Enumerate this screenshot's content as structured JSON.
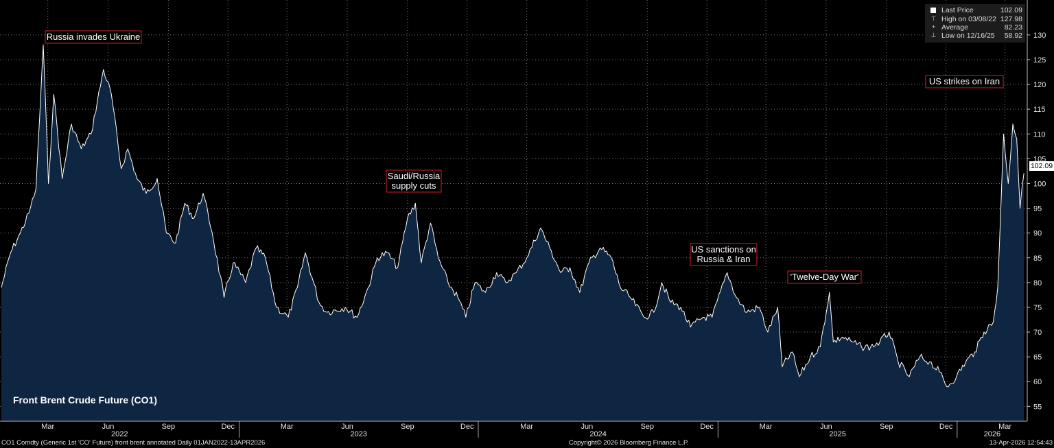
{
  "chart_data": {
    "type": "area",
    "title": "Front Brent Crude Future (CO1)",
    "ylim": [
      52,
      134
    ],
    "y_ticks": [
      55,
      60,
      65,
      70,
      75,
      80,
      85,
      90,
      95,
      100,
      105,
      110,
      115,
      120,
      125,
      130
    ],
    "x_month_ticks": [
      "Mar",
      "Jun",
      "Sep",
      "Dec",
      "Mar",
      "Jun",
      "Sep",
      "Dec",
      "Mar",
      "Jun",
      "Sep",
      "Dec",
      "Mar",
      "Jun",
      "Sep",
      "Dec",
      "Mar"
    ],
    "x_year_labels": [
      "2022",
      "2023",
      "2024",
      "2025",
      "2026"
    ],
    "grid": true,
    "series": [
      {
        "name": "Last Price",
        "x": [
          "2022-01-03",
          "2022-01-17",
          "2022-02-01",
          "2022-02-14",
          "2022-02-25",
          "2022-03-08",
          "2022-03-16",
          "2022-03-24",
          "2022-04-06",
          "2022-04-20",
          "2022-05-05",
          "2022-05-20",
          "2022-06-08",
          "2022-06-20",
          "2022-07-05",
          "2022-07-15",
          "2022-07-29",
          "2022-08-12",
          "2022-08-29",
          "2022-09-12",
          "2022-09-26",
          "2022-10-10",
          "2022-10-24",
          "2022-11-07",
          "2022-11-21",
          "2022-12-09",
          "2022-12-23",
          "2023-01-11",
          "2023-01-27",
          "2023-02-10",
          "2023-02-27",
          "2023-03-17",
          "2023-03-31",
          "2023-04-12",
          "2023-05-03",
          "2023-05-15",
          "2023-06-12",
          "2023-06-30",
          "2023-07-17",
          "2023-07-31",
          "2023-08-15",
          "2023-08-31",
          "2023-09-15",
          "2023-09-27",
          "2023-10-06",
          "2023-10-20",
          "2023-11-01",
          "2023-11-16",
          "2023-12-01",
          "2023-12-13",
          "2023-12-27",
          "2024-01-12",
          "2024-01-29",
          "2024-02-12",
          "2024-02-28",
          "2024-03-15",
          "2024-04-05",
          "2024-04-19",
          "2024-05-06",
          "2024-05-20",
          "2024-06-04",
          "2024-06-18",
          "2024-07-05",
          "2024-07-22",
          "2024-08-05",
          "2024-08-20",
          "2024-09-10",
          "2024-09-25",
          "2024-10-07",
          "2024-10-21",
          "2024-11-05",
          "2024-11-20",
          "2024-12-09",
          "2024-12-23",
          "2025-01-15",
          "2025-01-29",
          "2025-02-14",
          "2025-03-05",
          "2025-03-18",
          "2025-04-02",
          "2025-04-09",
          "2025-04-24",
          "2025-05-05",
          "2025-05-22",
          "2025-06-06",
          "2025-06-20",
          "2025-06-26",
          "2025-07-10",
          "2025-07-25",
          "2025-08-08",
          "2025-08-22",
          "2025-09-05",
          "2025-09-19",
          "2025-10-03",
          "2025-10-20",
          "2025-11-05",
          "2025-11-20",
          "2025-12-05",
          "2025-12-16",
          "2025-12-31",
          "2026-01-14",
          "2026-01-28",
          "2026-02-11",
          "2026-02-25",
          "2026-03-04",
          "2026-03-09",
          "2026-03-13",
          "2026-03-20",
          "2026-03-27",
          "2026-04-02",
          "2026-04-07",
          "2026-04-13"
        ],
        "y": [
          79,
          86,
          90,
          94,
          99,
          128,
          100,
          118,
          101,
          112,
          107,
          110,
          123,
          118,
          103,
          107,
          101,
          98,
          101,
          90,
          88,
          96,
          93,
          98,
          90,
          77,
          84,
          80,
          87,
          85,
          75,
          73,
          79,
          86,
          76,
          74,
          75,
          73,
          79,
          85,
          86,
          83,
          93,
          96,
          84,
          92,
          85,
          80,
          77,
          73,
          80,
          78,
          82,
          80,
          82,
          85,
          91,
          87,
          82,
          83,
          78,
          84,
          87,
          85,
          79,
          77,
          73,
          74,
          80,
          76,
          75,
          71,
          73,
          73,
          82,
          77,
          74,
          75,
          70,
          75,
          63,
          66,
          61,
          65,
          67,
          78,
          68,
          69,
          68,
          67,
          67,
          68,
          70,
          64,
          61,
          65,
          64,
          62,
          59,
          61,
          64,
          66,
          70,
          72,
          79,
          96,
          110,
          100,
          112,
          109,
          95,
          102.09
        ]
      }
    ],
    "legend": {
      "last_label": "Last Price",
      "last_value": "102.09",
      "high_label": "High on 03/08/22",
      "high_value": "127.98",
      "avg_label": "Average",
      "avg_value": "82.23",
      "low_label": "Low on 12/16/25",
      "low_value": "58.92"
    },
    "last_price_tag": "102.09",
    "annotations": [
      {
        "text": "Russia invades Ukraine",
        "date": "2022-03-08"
      },
      {
        "text": "Saudi/Russia supply cuts",
        "date": "2023-09-27"
      },
      {
        "text": "US sanctions on Russia & Iran",
        "date": "2025-01-15"
      },
      {
        "text": "'Twelve-Day War'",
        "date": "2025-06-20"
      },
      {
        "text": "US strikes on Iran",
        "date": "2026-03-09"
      }
    ]
  },
  "footer": {
    "left": "CO1 Comdty (Generic 1st 'CO' Future) front brent annotated Daily 01JAN2022-13APR2026",
    "center": "Copyright© 2026 Bloomberg Finance L.P.",
    "right": "13-Apr-2026 12:54:43"
  },
  "colors": {
    "background": "#000000",
    "area_fill": "#0f2642",
    "line": "#ffffff",
    "annotation_border": "#d0212b",
    "grid": "#7f7f7f"
  }
}
